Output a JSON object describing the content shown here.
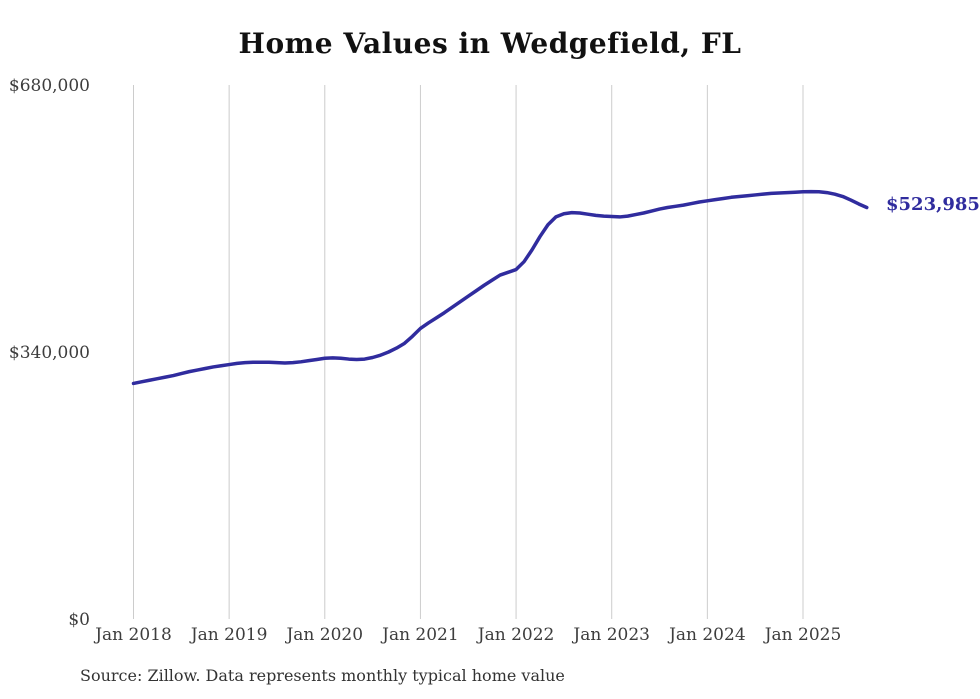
{
  "title": "Home Values in Wedgefield, FL",
  "latest_value_label": "$523,985",
  "source_note": "Source: Zillow. Data represents monthly typical home value",
  "colors": {
    "line": "#302c9e",
    "latest_label": "#302c9e",
    "gridline": "#cccccc",
    "axis_text": "#3d3d3d",
    "title_text": "#111111",
    "background": "#ffffff"
  },
  "chart_data": {
    "type": "line",
    "title": "Home Values in Wedgefield, FL",
    "xlabel": "",
    "ylabel": "",
    "x_start": "2018-01",
    "x_end": "2025-09",
    "frequency": "monthly",
    "x_tick_labels": [
      "Jan 2018",
      "Jan 2019",
      "Jan 2020",
      "Jan 2021",
      "Jan 2022",
      "Jan 2023",
      "Jan 2024",
      "Jan 2025"
    ],
    "y_ticks": [
      0,
      340000,
      680000
    ],
    "y_tick_labels": [
      "$0",
      "$340,000",
      "$680,000"
    ],
    "ylim": [
      0,
      680000
    ],
    "grid": "vertical-only",
    "legend": "none",
    "last_value_label": "$523,985",
    "series": [
      {
        "name": "Typical home value",
        "values": [
          300000,
          302000,
          304000,
          306000,
          308000,
          310000,
          312500,
          315000,
          317000,
          319000,
          321000,
          322500,
          324000,
          325500,
          326500,
          327000,
          327000,
          327000,
          326500,
          326000,
          326500,
          327500,
          329000,
          330500,
          332000,
          332500,
          332000,
          331000,
          330500,
          331000,
          333000,
          336000,
          340000,
          345000,
          351000,
          360000,
          370000,
          377000,
          383500,
          390000,
          397000,
          404000,
          411000,
          418000,
          425000,
          431500,
          438000,
          441500,
          445000,
          455000,
          470000,
          487000,
          502000,
          512000,
          516000,
          517500,
          517000,
          515500,
          514000,
          513000,
          512500,
          512000,
          513000,
          515000,
          517000,
          519500,
          522000,
          524000,
          525500,
          527000,
          529000,
          531000,
          532500,
          534000,
          535500,
          537000,
          538000,
          539000,
          540000,
          541000,
          542000,
          542500,
          543000,
          543500,
          544000,
          544200,
          544000,
          543000,
          541000,
          538000,
          533500,
          528500,
          523985
        ]
      }
    ]
  }
}
